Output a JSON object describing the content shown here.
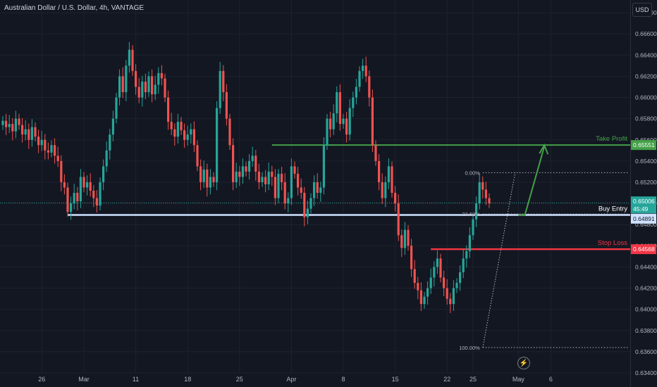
{
  "header": {
    "title": "Australian Dollar / U.S. Dollar, 4h, VANTAGE",
    "currency_button": "USD"
  },
  "colors": {
    "background": "#131722",
    "bull": "#26a69a",
    "bear": "#ef5350",
    "take_profit": "#43a047",
    "stop_loss": "#f23645",
    "buy_entry": "#cfe2ff",
    "fib": "#b2b5be"
  },
  "chart_data": {
    "type": "candlestick",
    "symbol": "AUDUSD",
    "timeframe": "4h",
    "y_axis": {
      "min": 0.634,
      "max": 0.6692,
      "grid": true,
      "ticks": [
        "0.66800",
        "0.66600",
        "0.66400",
        "0.66200",
        "0.66000",
        "0.65800",
        "0.65600",
        "0.65400",
        "0.65200",
        "0.65000",
        "0.64800",
        "0.64600",
        "0.64400",
        "0.64200",
        "0.64000",
        "0.63800",
        "0.63600",
        "0.63400"
      ]
    },
    "x_axis": {
      "ticks": [
        {
          "label": "26",
          "bar": 12
        },
        {
          "label": "Mar",
          "bar": 25
        },
        {
          "label": "11",
          "bar": 41
        },
        {
          "label": "18",
          "bar": 57
        },
        {
          "label": "25",
          "bar": 73
        },
        {
          "label": "Apr",
          "bar": 89
        },
        {
          "label": "8",
          "bar": 105
        },
        {
          "label": "15",
          "bar": 121
        },
        {
          "label": "22",
          "bar": 137
        },
        {
          "label": "25",
          "bar": 145
        },
        {
          "label": "May",
          "bar": 159
        },
        {
          "label": "6",
          "bar": 169
        }
      ]
    },
    "candles_close": [
      0.6578,
      0.6572,
      0.6575,
      0.6568,
      0.658,
      0.6574,
      0.6565,
      0.657,
      0.656,
      0.6572,
      0.6563,
      0.6555,
      0.656,
      0.655,
      0.6548,
      0.6555,
      0.6545,
      0.654,
      0.652,
      0.6515,
      0.6492,
      0.65,
      0.651,
      0.6502,
      0.6525,
      0.6515,
      0.652,
      0.6512,
      0.6505,
      0.6498,
      0.652,
      0.6535,
      0.655,
      0.6565,
      0.658,
      0.66,
      0.662,
      0.6605,
      0.663,
      0.6645,
      0.6625,
      0.661,
      0.66,
      0.6615,
      0.6605,
      0.662,
      0.6603,
      0.6612,
      0.6623,
      0.6618,
      0.66,
      0.6577,
      0.657,
      0.6563,
      0.6577,
      0.6569,
      0.656,
      0.6565,
      0.657,
      0.6555,
      0.6535,
      0.652,
      0.6532,
      0.6515,
      0.6525,
      0.652,
      0.659,
      0.6625,
      0.6605,
      0.658,
      0.6555,
      0.652,
      0.653,
      0.6525,
      0.6535,
      0.653,
      0.654,
      0.6545,
      0.653,
      0.652,
      0.6525,
      0.6518,
      0.653,
      0.6525,
      0.6505,
      0.6528,
      0.652,
      0.65,
      0.6505,
      0.6535,
      0.6528,
      0.6515,
      0.651,
      0.6487,
      0.6495,
      0.6505,
      0.652,
      0.651,
      0.6515,
      0.6555,
      0.658,
      0.657,
      0.6585,
      0.6605,
      0.6575,
      0.658,
      0.6565,
      0.659,
      0.66,
      0.661,
      0.6625,
      0.663,
      0.662,
      0.66,
      0.6555,
      0.654,
      0.652,
      0.6505,
      0.652,
      0.6535,
      0.651,
      0.65,
      0.647,
      0.6458,
      0.6475,
      0.646,
      0.6438,
      0.6425,
      0.6418,
      0.6405,
      0.6412,
      0.642,
      0.643,
      0.644,
      0.6448,
      0.643,
      0.642,
      0.641,
      0.6405,
      0.642,
      0.6425,
      0.6435,
      0.6448,
      0.6455,
      0.647,
      0.6485,
      0.65,
      0.652,
      0.6513,
      0.6505,
      0.65
    ],
    "levels": [
      {
        "name": "Take Profit",
        "label": "Take Profit",
        "price": "0.65551"
      },
      {
        "name": "Buy Entry",
        "label": "Buy Entry",
        "price": "0.64891"
      },
      {
        "name": "Stop Loss",
        "label": "Stop Loss",
        "price": "0.64568"
      }
    ],
    "fibonacci": [
      {
        "label": "0.00%",
        "price": 0.6529
      },
      {
        "label": "23.60%",
        "price": 0.649
      },
      {
        "label": "100.00%",
        "price": 0.6364
      }
    ],
    "current_price": "0.65006",
    "countdown": "45:49"
  }
}
